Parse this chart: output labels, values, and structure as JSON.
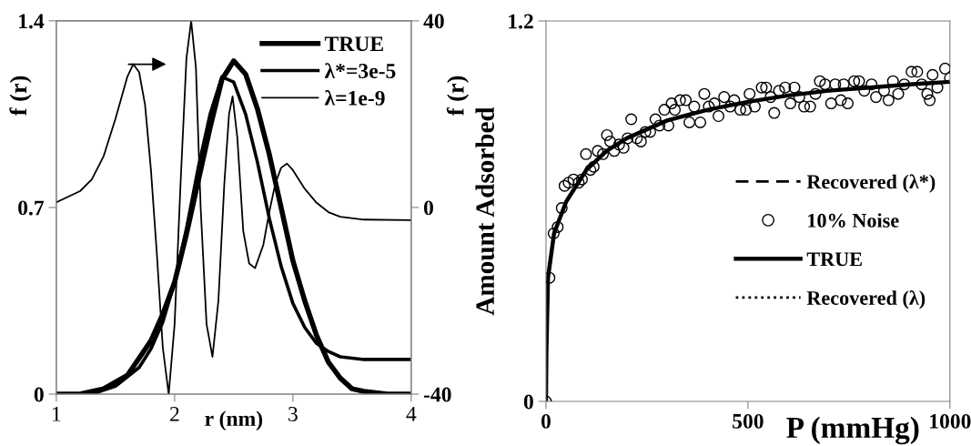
{
  "chart_data": [
    {
      "type": "line",
      "xlabel": "r (nm)",
      "ylabel": "f (r)",
      "y2label": "f (r)",
      "xlim": [
        1,
        4
      ],
      "xticks": [
        1,
        2,
        3,
        4
      ],
      "ylim": [
        0,
        1.4
      ],
      "yticks": [
        0,
        0.7,
        1.4
      ],
      "y2lim": [
        -40,
        40
      ],
      "y2ticks": [
        -40,
        0,
        40
      ],
      "legend": "top right",
      "grid": false,
      "series": [
        {
          "name": "TRUE",
          "color": "#000000",
          "x": [
            1.0,
            1.2,
            1.4,
            1.6,
            1.8,
            1.9,
            2.0,
            2.1,
            2.2,
            2.3,
            2.4,
            2.5,
            2.6,
            2.7,
            2.8,
            2.9,
            3.0,
            3.1,
            3.2,
            3.3,
            3.4,
            3.5,
            3.6,
            3.8,
            4.0
          ],
          "values": [
            0,
            0,
            0.02,
            0.07,
            0.2,
            0.3,
            0.42,
            0.6,
            0.8,
            1.0,
            1.18,
            1.25,
            1.2,
            1.07,
            0.9,
            0.7,
            0.5,
            0.35,
            0.22,
            0.12,
            0.06,
            0.02,
            0.01,
            0,
            0
          ]
        },
        {
          "name": "λ*=3e-5",
          "color": "#000000",
          "x": [
            1.0,
            1.3,
            1.5,
            1.7,
            1.8,
            1.9,
            2.0,
            2.1,
            2.2,
            2.3,
            2.4,
            2.5,
            2.6,
            2.7,
            2.8,
            2.9,
            3.0,
            3.1,
            3.2,
            3.3,
            3.4,
            3.6,
            4.0
          ],
          "values": [
            0,
            0,
            0.03,
            0.1,
            0.17,
            0.27,
            0.42,
            0.62,
            0.85,
            1.05,
            1.19,
            1.17,
            1.05,
            0.87,
            0.66,
            0.48,
            0.34,
            0.25,
            0.19,
            0.16,
            0.14,
            0.13,
            0.13
          ]
        },
        {
          "name": "λ=1e-9",
          "color": "#000000",
          "axis": "y2",
          "x": [
            1.0,
            1.2,
            1.3,
            1.4,
            1.5,
            1.6,
            1.65,
            1.7,
            1.75,
            1.8,
            1.85,
            1.9,
            1.95,
            2.0,
            2.05,
            2.1,
            2.14,
            2.18,
            2.22,
            2.27,
            2.32,
            2.37,
            2.42,
            2.46,
            2.49,
            2.53,
            2.58,
            2.63,
            2.68,
            2.75,
            2.8,
            2.85,
            2.9,
            2.95,
            3.0,
            3.1,
            3.2,
            3.3,
            3.4,
            3.6,
            4.0
          ],
          "values": [
            1.1,
            3.5,
            6,
            11,
            19,
            28,
            30.7,
            29,
            22,
            8,
            -10,
            -30,
            -40,
            -25,
            5,
            32,
            40,
            30,
            0,
            -25,
            -32,
            -20,
            5,
            20,
            23.8,
            15,
            -5,
            -12,
            -13,
            -8,
            -1,
            5,
            8.5,
            9.4,
            8,
            4,
            1,
            -1,
            -2,
            -2.6,
            -2.7
          ]
        }
      ]
    },
    {
      "type": "line",
      "xlabel": "P (mmHg)",
      "ylabel": "Amount Adsorbed",
      "xlim": [
        0,
        1000
      ],
      "xticks": [
        0,
        500,
        1000
      ],
      "ylim": [
        0,
        1.2
      ],
      "yticks": [
        0,
        1.2
      ],
      "legend": "right",
      "grid": false,
      "series": [
        {
          "name": "Recovered (λ*)",
          "color": "#000000",
          "line_style": "dashed"
        },
        {
          "name": "10% Noise",
          "color": "#000000",
          "type": "scatter",
          "marker": "circle",
          "x": [
            0,
            8.5,
            19,
            29,
            39,
            46,
            56,
            68,
            81,
            89,
            99,
            110,
            118,
            128,
            141,
            151,
            159,
            169,
            181,
            192,
            202,
            211,
            225,
            235,
            246,
            258,
            271,
            281,
            293,
            303,
            311,
            319,
            332,
            346,
            355,
            367,
            382,
            392,
            403,
            417,
            427,
            441,
            456,
            466,
            481,
            495,
            504,
            517,
            534,
            545,
            556,
            565,
            577,
            592,
            605,
            615,
            627,
            639,
            654,
            667,
            678,
            691,
            706,
            716,
            730,
            737,
            747,
            763,
            775,
            788,
            806,
            817,
            837,
            848,
            859,
            872,
            887,
            905,
            919,
            930,
            944,
            950,
            957,
            969,
            988,
            1000
          ],
          "values": [
            0,
            0.39,
            0.53,
            0.55,
            0.61,
            0.68,
            0.69,
            0.7,
            0.69,
            0.7,
            0.78,
            0.73,
            0.74,
            0.79,
            0.78,
            0.84,
            0.82,
            0.79,
            0.81,
            0.8,
            0.83,
            0.89,
            0.83,
            0.82,
            0.85,
            0.85,
            0.89,
            0.87,
            0.92,
            0.87,
            0.94,
            0.92,
            0.95,
            0.95,
            0.88,
            0.93,
            0.88,
            0.97,
            0.93,
            0.94,
            0.9,
            0.96,
            0.93,
            0.95,
            0.92,
            0.92,
            0.97,
            0.93,
            0.99,
            0.99,
            0.96,
            0.91,
            0.98,
            0.99,
            0.94,
            0.99,
            0.96,
            0.93,
            0.93,
            0.97,
            1.01,
            1.0,
            0.94,
            1.0,
            0.95,
            1.0,
            0.94,
            1.01,
            1.01,
            0.98,
            1.0,
            0.96,
            0.98,
            0.95,
            1.01,
            0.97,
            1.0,
            1.04,
            1.04,
            1.0,
            0.97,
            0.95,
            1.03,
            0.99,
            1.05,
            1.02
          ]
        },
        {
          "name": "TRUE",
          "color": "#000000",
          "line_style": "solid",
          "x": [
            0,
            1,
            5,
            20,
            50,
            100,
            150,
            200,
            300,
            400,
            500,
            600,
            700,
            800,
            900,
            1000
          ],
          "values": [
            0,
            0.15,
            0.39,
            0.53,
            0.63,
            0.73,
            0.79,
            0.83,
            0.886,
            0.92,
            0.945,
            0.965,
            0.98,
            0.99,
            1.0,
            1.008
          ]
        },
        {
          "name": "Recovered (λ)",
          "color": "#000000",
          "line_style": "dotted"
        }
      ]
    }
  ]
}
